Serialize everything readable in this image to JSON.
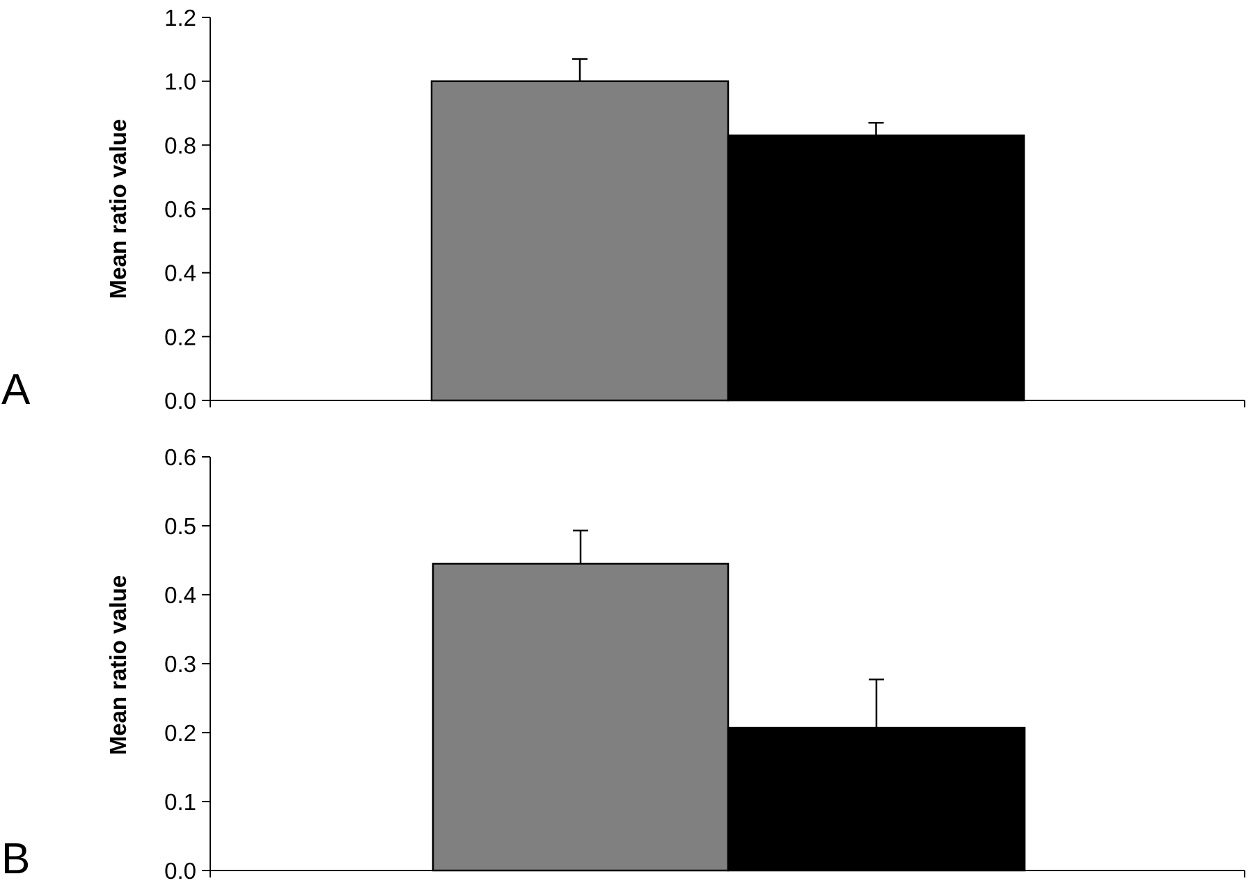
{
  "chart_data": [
    {
      "type": "bar",
      "panel_label": "A",
      "ylabel": "Mean ratio value",
      "xlabel": "",
      "ylim": [
        0,
        1.2
      ],
      "yticks": [
        "0.0",
        "0.2",
        "0.4",
        "0.6",
        "0.8",
        "1.0",
        "1.2"
      ],
      "grid": false,
      "series": [
        {
          "values": [
            1.0
          ],
          "error": [
            0.07
          ],
          "color": "#808080"
        },
        {
          "values": [
            0.83
          ],
          "error": [
            0.04
          ],
          "color": "#000000"
        }
      ]
    },
    {
      "type": "bar",
      "panel_label": "B",
      "ylabel": "Mean ratio value",
      "xlabel": "",
      "ylim": [
        0,
        0.6
      ],
      "yticks": [
        "0.0",
        "0.1",
        "0.2",
        "0.3",
        "0.4",
        "0.5",
        "0.6"
      ],
      "grid": false,
      "series": [
        {
          "values": [
            0.445
          ],
          "error": [
            0.048
          ],
          "color": "#808080"
        },
        {
          "values": [
            0.207
          ],
          "error": [
            0.07
          ],
          "color": "#000000"
        }
      ]
    }
  ]
}
